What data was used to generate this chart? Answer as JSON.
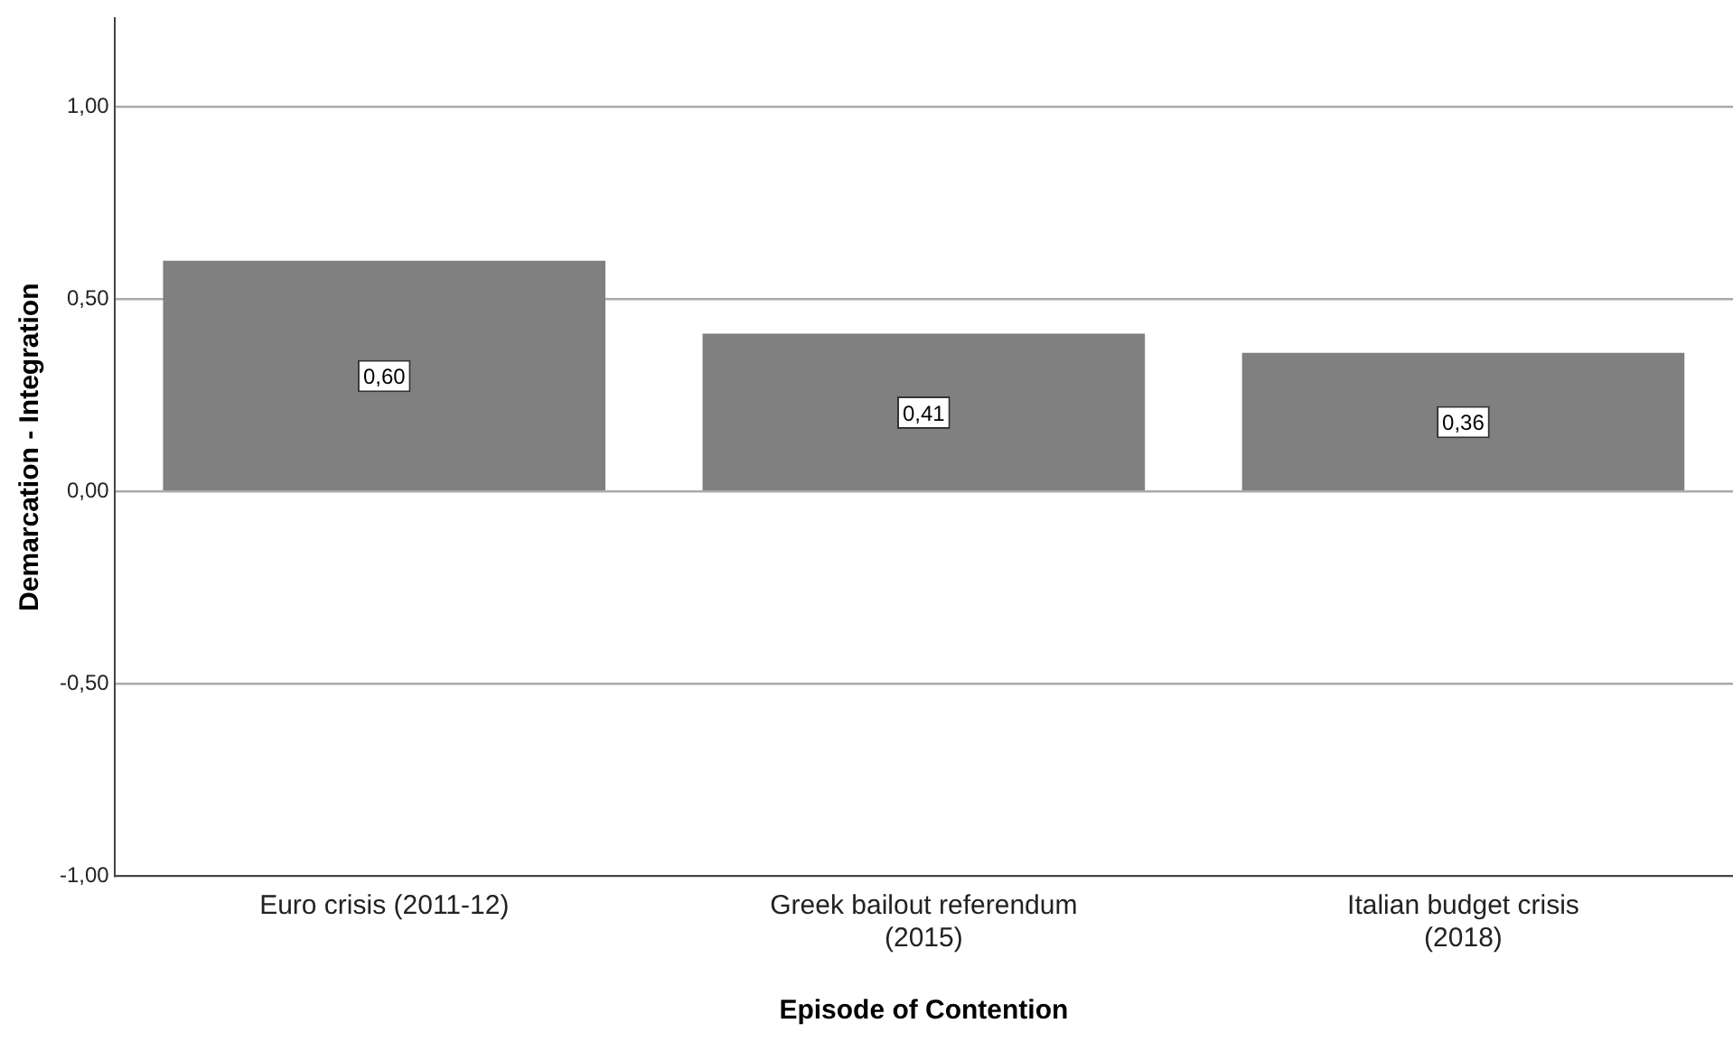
{
  "chart_data": {
    "type": "bar",
    "xlabel": "Episode of Contention",
    "ylabel": "Demarcation - Integration",
    "categories": [
      "Euro crisis (2011-12)",
      "Greek bailout referendum (2015)",
      "Italian budget crisis (2018)"
    ],
    "values": [
      0.6,
      0.41,
      0.36
    ],
    "color": "#808080",
    "value_labels": [
      "0,60",
      "0,41",
      "0,36"
    ],
    "ylim": [
      -1,
      1.23
    ],
    "yticks": [
      {
        "value": -1,
        "label": "-1,00"
      },
      {
        "value": -0.5,
        "label": "-0,50"
      },
      {
        "value": 0,
        "label": "0,00"
      },
      {
        "value": 0.5,
        "label": "0,50"
      },
      {
        "value": 1,
        "label": "1,00"
      }
    ],
    "grid": "y",
    "legend": false
  }
}
